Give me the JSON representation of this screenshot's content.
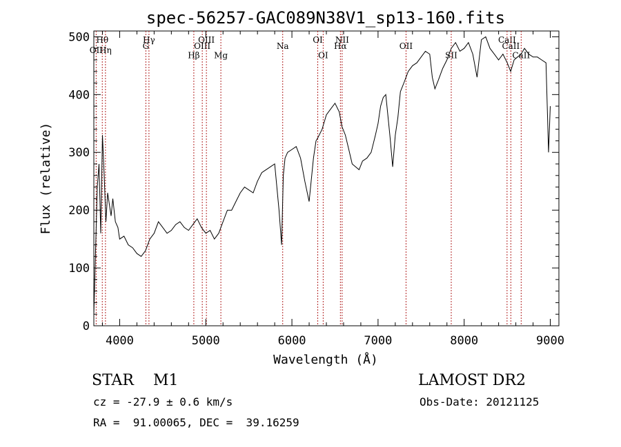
{
  "chart_data": {
    "type": "line",
    "title": "spec-56257-GAC089N38V1_sp13-160.fits",
    "xlabel": "Wavelength (Å)",
    "ylabel": "Flux (relative)",
    "xlim": [
      3700,
      9100
    ],
    "ylim": [
      0,
      510
    ],
    "xticks": [
      4000,
      5000,
      6000,
      7000,
      8000,
      9000
    ],
    "yticks": [
      0,
      100,
      200,
      300,
      400,
      500
    ],
    "grid": false,
    "series": [
      {
        "x": [
          3700,
          3720,
          3740,
          3760,
          3780,
          3800,
          3820,
          3840,
          3860,
          3880,
          3900,
          3920,
          3950,
          3980,
          4000,
          4050,
          4100,
          4150,
          4200,
          4250,
          4300,
          4350,
          4400,
          4450,
          4500,
          4550,
          4600,
          4650,
          4700,
          4750,
          4800,
          4850,
          4900,
          4950,
          5000,
          5050,
          5100,
          5150,
          5200,
          5250,
          5300,
          5350,
          5400,
          5450,
          5500,
          5550,
          5600,
          5650,
          5700,
          5750,
          5800,
          5850,
          5880,
          5900,
          5920,
          5950,
          6000,
          6050,
          6100,
          6150,
          6200,
          6250,
          6280,
          6300,
          6350,
          6400,
          6450,
          6500,
          6550,
          6580,
          6620,
          6660,
          6700,
          6740,
          6780,
          6820,
          6870,
          6920,
          6970,
          7000,
          7030,
          7060,
          7090,
          7120,
          7140,
          7170,
          7200,
          7230,
          7260,
          7300,
          7350,
          7400,
          7450,
          7500,
          7550,
          7600,
          7630,
          7660,
          7700,
          7750,
          7800,
          7850,
          7900,
          7950,
          8000,
          8050,
          8100,
          8150,
          8200,
          8250,
          8300,
          8350,
          8400,
          8450,
          8500,
          8540,
          8580,
          8620,
          8660,
          8700,
          8750,
          8800,
          8850,
          8900,
          8950,
          8980,
          9000
        ],
        "y": [
          20,
          130,
          240,
          280,
          160,
          330,
          260,
          180,
          230,
          210,
          190,
          220,
          180,
          170,
          150,
          155,
          140,
          135,
          125,
          120,
          130,
          150,
          160,
          180,
          170,
          160,
          165,
          175,
          180,
          170,
          165,
          175,
          185,
          170,
          160,
          165,
          150,
          160,
          180,
          200,
          200,
          215,
          230,
          240,
          235,
          230,
          250,
          265,
          270,
          275,
          280,
          200,
          140,
          260,
          290,
          300,
          305,
          310,
          290,
          250,
          215,
          290,
          320,
          325,
          340,
          365,
          375,
          385,
          370,
          345,
          330,
          305,
          280,
          275,
          270,
          285,
          290,
          300,
          330,
          350,
          380,
          395,
          400,
          355,
          325,
          275,
          330,
          360,
          405,
          420,
          440,
          450,
          455,
          465,
          475,
          470,
          430,
          410,
          425,
          445,
          460,
          480,
          490,
          475,
          480,
          490,
          470,
          430,
          495,
          500,
          480,
          470,
          460,
          470,
          455,
          440,
          460,
          465,
          470,
          480,
          470,
          465,
          465,
          460,
          455,
          300,
          380
        ]
      }
    ],
    "lines": [
      {
        "name": "Hθ",
        "x": 3798,
        "row": 1
      },
      {
        "name": "Hη",
        "x": 3835,
        "row": 2
      },
      {
        "name": "OII",
        "x": 3727,
        "row": 2
      },
      {
        "name": "Hγ",
        "x": 4340,
        "row": 1
      },
      {
        "name": "G",
        "x": 4304,
        "row": 1.6
      },
      {
        "name": "Hβ",
        "x": 4861,
        "row": 2.5
      },
      {
        "name": "OIII",
        "x": 4959,
        "row": 1.6
      },
      {
        "name": "OIII",
        "x": 5007,
        "row": 1
      },
      {
        "name": "Mg",
        "x": 5175,
        "row": 2.5
      },
      {
        "name": "Na",
        "x": 5893,
        "row": 1.6
      },
      {
        "name": "OI",
        "x": 6300,
        "row": 1
      },
      {
        "name": "OI",
        "x": 6363,
        "row": 2.5
      },
      {
        "name": "NII",
        "x": 6583,
        "row": 1
      },
      {
        "name": "Hα",
        "x": 6563,
        "row": 1.6
      },
      {
        "name": "OII",
        "x": 7325,
        "row": 1.6
      },
      {
        "name": "SII",
        "x": 7850,
        "row": 2.5
      },
      {
        "name": "CaII",
        "x": 8498,
        "row": 1
      },
      {
        "name": "CaII",
        "x": 8542,
        "row": 1.6
      },
      {
        "name": "CaII",
        "x": 8662,
        "row": 2.5
      }
    ]
  },
  "info": {
    "object": "STAR    M1",
    "survey": "LAMOST DR2",
    "cz": "cz = -27.9 ± 0.6 km/s",
    "obsdate": "Obs-Date: 20121125",
    "radec": "RA =  91.00065, DEC =  39.16259"
  }
}
